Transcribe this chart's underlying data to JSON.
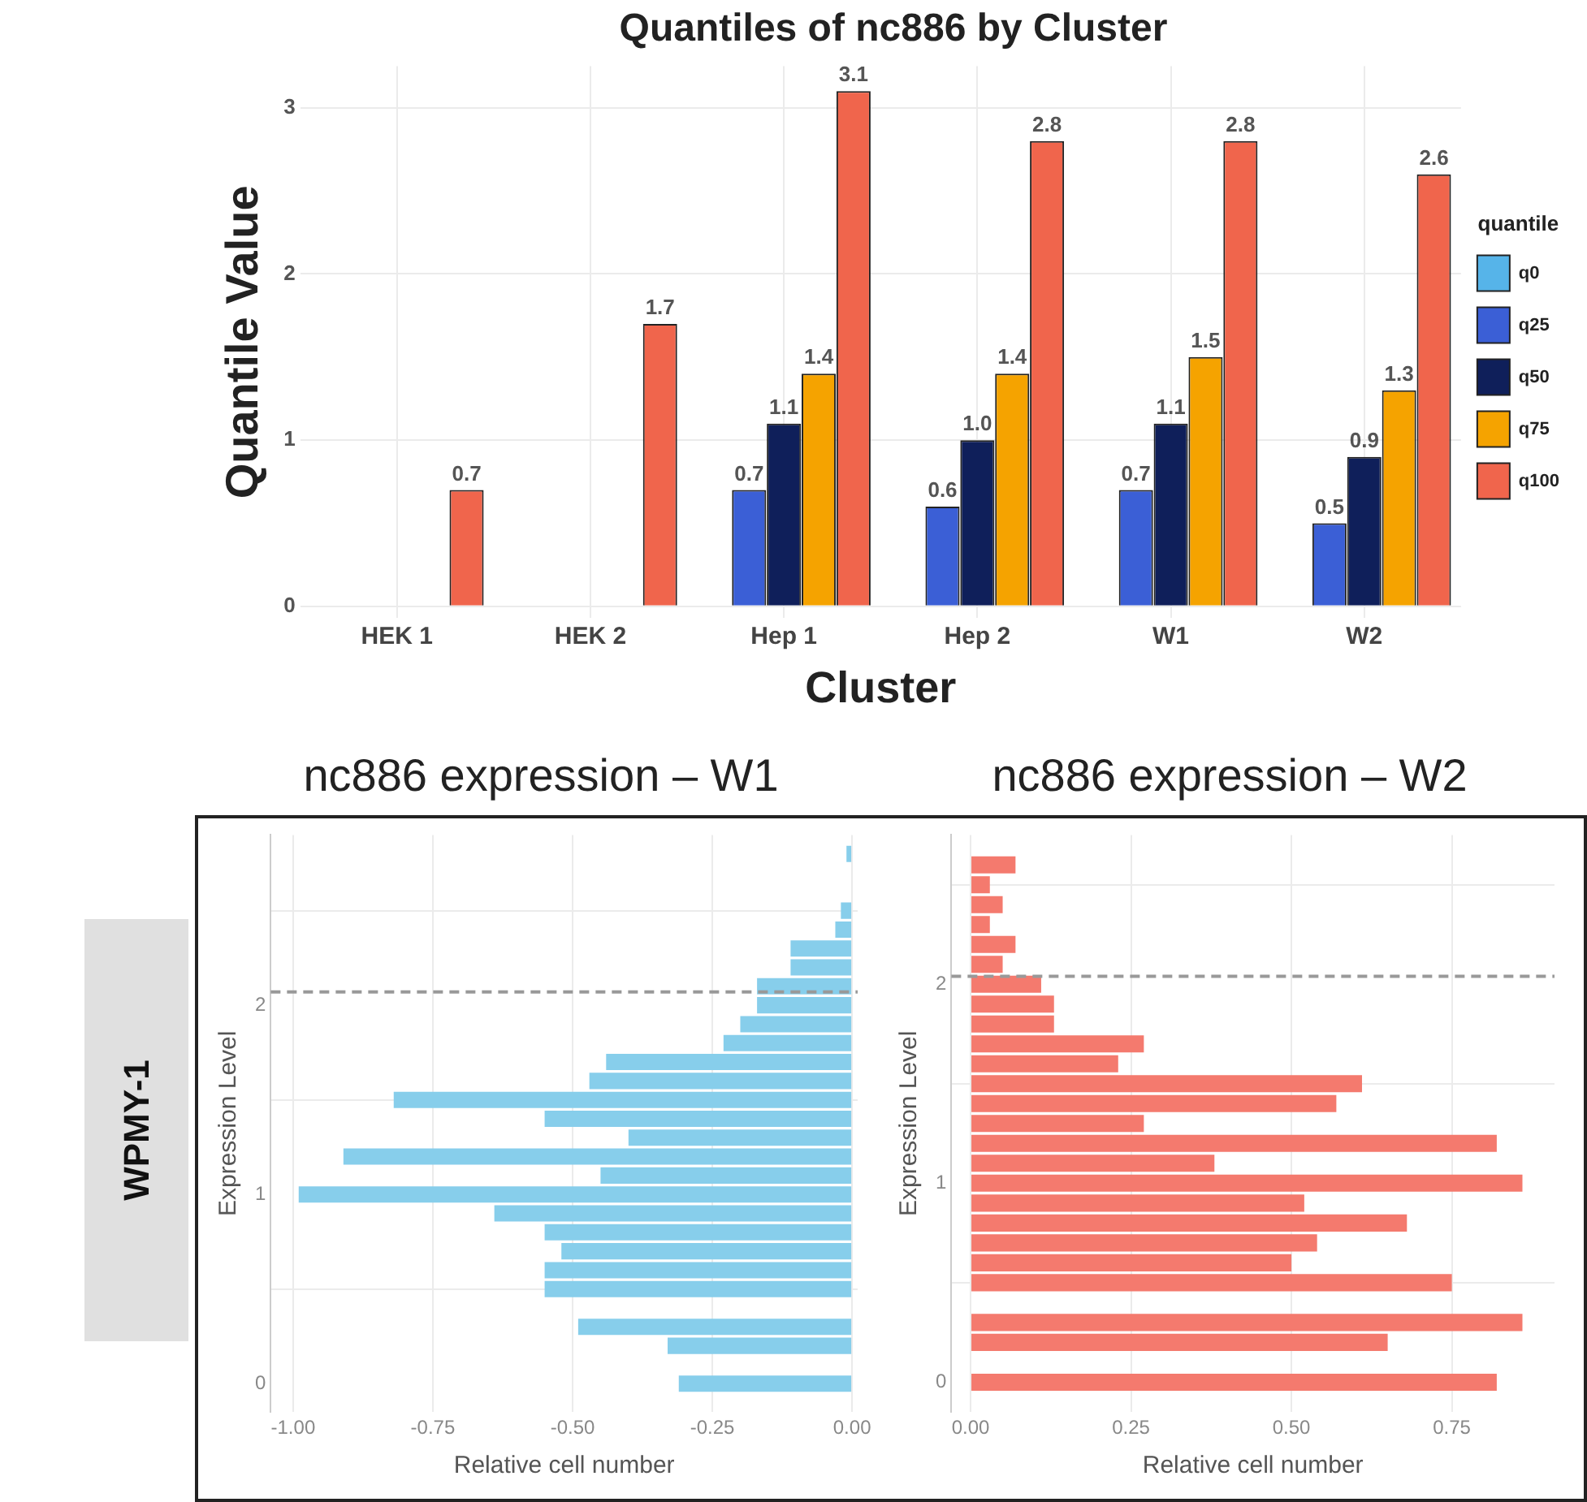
{
  "chart_data": [
    {
      "type": "bar",
      "title": "Quantiles of nc886 by Cluster",
      "xlabel": "Cluster",
      "ylabel": "Quantile Value",
      "legend_title": "quantile",
      "legend": "right",
      "grid": true,
      "categories": [
        "HEK 1",
        "HEK 2",
        "Hep 1",
        "Hep 2",
        "W1",
        "W2"
      ],
      "ylim": [
        -0.07,
        3.25
      ],
      "yticks": [
        0,
        1,
        2,
        3
      ],
      "series": [
        {
          "name": "q0",
          "color": "#56b4e9",
          "values": [
            0,
            0,
            0,
            0,
            0,
            0
          ]
        },
        {
          "name": "q25",
          "color": "#3b5fd6",
          "values": [
            0,
            0,
            0.7,
            0.6,
            0.7,
            0.5
          ],
          "value_labels": [
            null,
            null,
            "0.7",
            "0.6",
            "0.7",
            "0.5"
          ]
        },
        {
          "name": "q50",
          "color": "#0f1f5a",
          "values": [
            0,
            0,
            1.1,
            1.0,
            1.1,
            0.9
          ],
          "value_labels": [
            null,
            null,
            "1.1",
            "1.0",
            "1.1",
            "0.9"
          ]
        },
        {
          "name": "q75",
          "color": "#f5a300",
          "values": [
            0,
            0,
            1.4,
            1.4,
            1.5,
            1.3
          ],
          "value_labels": [
            null,
            null,
            "1.4",
            "1.4",
            "1.5",
            "1.3"
          ]
        },
        {
          "name": "q100",
          "color": "#f0654c",
          "values": [
            0.7,
            1.7,
            3.1,
            2.8,
            2.8,
            2.6
          ],
          "value_labels": [
            "0.7",
            "1.7",
            "3.1",
            "2.8",
            "2.8",
            "2.6"
          ]
        }
      ]
    },
    {
      "type": "histogram",
      "orientation": "horizontal",
      "title": "nc886 expression – W1",
      "xlabel": "Relative cell number",
      "ylabel": "Expression Level",
      "annotations": [
        "WPMY-1"
      ],
      "grid": true,
      "color": "#87ceeb",
      "bins": [
        -0.05,
        0.05,
        0.15,
        0.25,
        0.35,
        0.45,
        0.55,
        0.65,
        0.75,
        0.85,
        0.95,
        1.05,
        1.15,
        1.25,
        1.35,
        1.45,
        1.55,
        1.65,
        1.75,
        1.85,
        1.95,
        2.05,
        2.15,
        2.25,
        2.35,
        2.45,
        2.55,
        2.65,
        2.75,
        2.85
      ],
      "values": [
        -0.31,
        0,
        -0.33,
        -0.49,
        0,
        -0.55,
        -0.55,
        -0.52,
        -0.55,
        -0.64,
        -0.99,
        -0.45,
        -0.91,
        -0.4,
        -0.55,
        -0.82,
        -0.47,
        -0.44,
        -0.23,
        -0.2,
        -0.17,
        -0.17,
        -0.11,
        -0.11,
        -0.03,
        -0.02,
        0,
        0,
        -0.01
      ],
      "xlim": [
        -1.04,
        0.01
      ],
      "xticks": [
        {
          "value": -1,
          "label": "-1.00"
        },
        {
          "value": -0.75,
          "label": "-0.75"
        },
        {
          "value": -0.5,
          "label": "-0.50"
        },
        {
          "value": -0.25,
          "label": "-0.25"
        },
        {
          "value": 0,
          "label": "0.00"
        }
      ],
      "ylim": [
        -0.15,
        2.9
      ],
      "yticks": [
        0,
        1,
        2
      ],
      "ref_lines": [
        {
          "axis": "y",
          "value": 2.07,
          "color": "#999999",
          "line_style": "dashed"
        }
      ]
    },
    {
      "type": "histogram",
      "orientation": "horizontal",
      "title": "nc886 expression – W2",
      "xlabel": "Relative cell number",
      "ylabel": "Expression Level",
      "grid": true,
      "color": "#f47a6e",
      "bins": [
        -0.05,
        0.05,
        0.15,
        0.25,
        0.35,
        0.45,
        0.55,
        0.65,
        0.75,
        0.85,
        0.95,
        1.05,
        1.15,
        1.25,
        1.35,
        1.45,
        1.55,
        1.65,
        1.75,
        1.85,
        1.95,
        2.05,
        2.15,
        2.25,
        2.35,
        2.45,
        2.55,
        2.65
      ],
      "values": [
        0.82,
        0,
        0.65,
        0.86,
        0,
        0.75,
        0.5,
        0.54,
        0.68,
        0.52,
        0.86,
        0.38,
        0.82,
        0.27,
        0.57,
        0.61,
        0.23,
        0.27,
        0.13,
        0.13,
        0.11,
        0.05,
        0.07,
        0.03,
        0.05,
        0.03,
        0.07
      ],
      "xlim": [
        -0.03,
        0.91
      ],
      "xticks": [
        {
          "value": 0,
          "label": "0.00"
        },
        {
          "value": 0.25,
          "label": "0.25"
        },
        {
          "value": 0.5,
          "label": "0.50"
        },
        {
          "value": 0.75,
          "label": "0.75"
        }
      ],
      "ylim": [
        -0.15,
        2.75
      ],
      "yticks": [
        0,
        1,
        2
      ],
      "ref_lines": [
        {
          "axis": "y",
          "value": 2.04,
          "color": "#999999",
          "line_style": "dashed"
        }
      ]
    }
  ]
}
